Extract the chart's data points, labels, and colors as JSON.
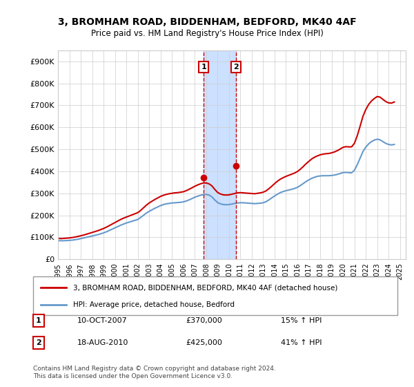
{
  "title": "3, BROMHAM ROAD, BIDDENHAM, BEDFORD, MK40 4AF",
  "subtitle": "Price paid vs. HM Land Registry's House Price Index (HPI)",
  "ylabel_ticks": [
    "£0",
    "£100K",
    "£200K",
    "£300K",
    "£400K",
    "£500K",
    "£600K",
    "£700K",
    "£800K",
    "£900K"
  ],
  "ytick_values": [
    0,
    100000,
    200000,
    300000,
    400000,
    500000,
    600000,
    700000,
    800000,
    900000
  ],
  "ylim": [
    0,
    950000
  ],
  "xlim_start": 1995.5,
  "xlim_end": 2025.5,
  "xtick_years": [
    1995,
    1996,
    1997,
    1998,
    1999,
    2000,
    2001,
    2002,
    2003,
    2004,
    2005,
    2006,
    2007,
    2008,
    2009,
    2010,
    2011,
    2012,
    2013,
    2014,
    2015,
    2016,
    2017,
    2018,
    2019,
    2020,
    2021,
    2022,
    2023,
    2024,
    2025
  ],
  "transaction1_x": 2007.78,
  "transaction1_y": 370000,
  "transaction1_label": "1",
  "transaction1_date": "10-OCT-2007",
  "transaction1_price": "£370,000",
  "transaction1_hpi": "15% ↑ HPI",
  "transaction2_x": 2010.63,
  "transaction2_y": 425000,
  "transaction2_label": "2",
  "transaction2_date": "18-AUG-2010",
  "transaction2_price": "£425,000",
  "transaction2_hpi": "41% ↑ HPI",
  "shade_start": 2007.78,
  "shade_end": 2010.63,
  "red_line_color": "#cc0000",
  "blue_line_color": "#6699cc",
  "shade_color": "#cce0ff",
  "grid_color": "#cccccc",
  "background_color": "#ffffff",
  "legend_house_label": "3, BROMHAM ROAD, BIDDENHAM, BEDFORD, MK40 4AF (detached house)",
  "legend_hpi_label": "HPI: Average price, detached house, Bedford",
  "footer": "Contains HM Land Registry data © Crown copyright and database right 2024.\nThis data is licensed under the Open Government Licence v3.0.",
  "hpi_data_x": [
    1995,
    1995.25,
    1995.5,
    1995.75,
    1996,
    1996.25,
    1996.5,
    1996.75,
    1997,
    1997.25,
    1997.5,
    1997.75,
    1998,
    1998.25,
    1998.5,
    1998.75,
    1999,
    1999.25,
    1999.5,
    1999.75,
    2000,
    2000.25,
    2000.5,
    2000.75,
    2001,
    2001.25,
    2001.5,
    2001.75,
    2002,
    2002.25,
    2002.5,
    2002.75,
    2003,
    2003.25,
    2003.5,
    2003.75,
    2004,
    2004.25,
    2004.5,
    2004.75,
    2005,
    2005.25,
    2005.5,
    2005.75,
    2006,
    2006.25,
    2006.5,
    2006.75,
    2007,
    2007.25,
    2007.5,
    2007.75,
    2008,
    2008.25,
    2008.5,
    2008.75,
    2009,
    2009.25,
    2009.5,
    2009.75,
    2010,
    2010.25,
    2010.5,
    2010.75,
    2011,
    2011.25,
    2011.5,
    2011.75,
    2012,
    2012.25,
    2012.5,
    2012.75,
    2013,
    2013.25,
    2013.5,
    2013.75,
    2014,
    2014.25,
    2014.5,
    2014.75,
    2015,
    2015.25,
    2015.5,
    2015.75,
    2016,
    2016.25,
    2016.5,
    2016.75,
    2017,
    2017.25,
    2017.5,
    2017.75,
    2018,
    2018.25,
    2018.5,
    2018.75,
    2019,
    2019.25,
    2019.5,
    2019.75,
    2020,
    2020.25,
    2020.5,
    2020.75,
    2021,
    2021.25,
    2021.5,
    2021.75,
    2022,
    2022.25,
    2022.5,
    2022.75,
    2023,
    2023.25,
    2023.5,
    2023.75,
    2024,
    2024.25,
    2024.5
  ],
  "hpi_data_y": [
    85000,
    84000,
    84500,
    85000,
    86000,
    87000,
    89000,
    91000,
    94000,
    97000,
    100000,
    103000,
    106000,
    109000,
    112000,
    116000,
    120000,
    125000,
    131000,
    137000,
    143000,
    149000,
    155000,
    160000,
    165000,
    169000,
    173000,
    177000,
    181000,
    190000,
    200000,
    210000,
    218000,
    225000,
    232000,
    238000,
    244000,
    249000,
    252000,
    254000,
    256000,
    257000,
    258000,
    259000,
    261000,
    265000,
    270000,
    276000,
    282000,
    287000,
    291000,
    294000,
    295000,
    292000,
    284000,
    270000,
    258000,
    252000,
    249000,
    248000,
    249000,
    251000,
    254000,
    256000,
    257000,
    257000,
    256000,
    255000,
    254000,
    253000,
    254000,
    255000,
    257000,
    262000,
    270000,
    279000,
    288000,
    296000,
    303000,
    308000,
    312000,
    315000,
    318000,
    322000,
    327000,
    335000,
    344000,
    353000,
    361000,
    368000,
    373000,
    377000,
    379000,
    380000,
    380000,
    380000,
    381000,
    383000,
    386000,
    390000,
    394000,
    395000,
    394000,
    393000,
    405000,
    430000,
    460000,
    490000,
    510000,
    525000,
    535000,
    542000,
    546000,
    543000,
    535000,
    527000,
    522000,
    520000,
    522000
  ],
  "red_data_x": [
    1995,
    1995.25,
    1995.5,
    1995.75,
    1996,
    1996.25,
    1996.5,
    1996.75,
    1997,
    1997.25,
    1997.5,
    1997.75,
    1998,
    1998.25,
    1998.5,
    1998.75,
    1999,
    1999.25,
    1999.5,
    1999.75,
    2000,
    2000.25,
    2000.5,
    2000.75,
    2001,
    2001.25,
    2001.5,
    2001.75,
    2002,
    2002.25,
    2002.5,
    2002.75,
    2003,
    2003.25,
    2003.5,
    2003.75,
    2004,
    2004.25,
    2004.5,
    2004.75,
    2005,
    2005.25,
    2005.5,
    2005.75,
    2006,
    2006.25,
    2006.5,
    2006.75,
    2007,
    2007.25,
    2007.5,
    2007.75,
    2008,
    2008.25,
    2008.5,
    2008.75,
    2009,
    2009.25,
    2009.5,
    2009.75,
    2010,
    2010.25,
    2010.5,
    2010.75,
    2011,
    2011.25,
    2011.5,
    2011.75,
    2012,
    2012.25,
    2012.5,
    2012.75,
    2013,
    2013.25,
    2013.5,
    2013.75,
    2014,
    2014.25,
    2014.5,
    2014.75,
    2015,
    2015.25,
    2015.5,
    2015.75,
    2016,
    2016.25,
    2016.5,
    2016.75,
    2017,
    2017.25,
    2017.5,
    2017.75,
    2018,
    2018.25,
    2018.5,
    2018.75,
    2019,
    2019.25,
    2019.5,
    2019.75,
    2020,
    2020.25,
    2020.5,
    2020.75,
    2021,
    2021.25,
    2021.5,
    2021.75,
    2022,
    2022.25,
    2022.5,
    2022.75,
    2023,
    2023.25,
    2023.5,
    2023.75,
    2024,
    2024.25,
    2024.5
  ],
  "red_data_y": [
    95000,
    94000,
    95000,
    96000,
    97000,
    99000,
    101000,
    104000,
    107000,
    110000,
    114000,
    118000,
    122000,
    126000,
    130000,
    135000,
    140000,
    146000,
    153000,
    160000,
    167000,
    174000,
    181000,
    187000,
    192000,
    197000,
    202000,
    207000,
    212000,
    222000,
    234000,
    246000,
    256000,
    264000,
    272000,
    279000,
    286000,
    291000,
    295000,
    298000,
    300000,
    302000,
    303000,
    305000,
    307000,
    312000,
    318000,
    325000,
    332000,
    338000,
    343000,
    347000,
    347000,
    343000,
    334000,
    318000,
    304000,
    297000,
    293000,
    292000,
    293000,
    296000,
    299000,
    302000,
    303000,
    302000,
    301000,
    300000,
    299000,
    298000,
    300000,
    302000,
    305000,
    311000,
    321000,
    332000,
    344000,
    355000,
    364000,
    371000,
    377000,
    382000,
    387000,
    392000,
    399000,
    409000,
    421000,
    434000,
    445000,
    456000,
    464000,
    470000,
    475000,
    478000,
    480000,
    481000,
    484000,
    488000,
    494000,
    501000,
    509000,
    512000,
    511000,
    511000,
    527000,
    562000,
    605000,
    650000,
    681000,
    704000,
    720000,
    731000,
    740000,
    737000,
    727000,
    717000,
    711000,
    710000,
    715000
  ]
}
